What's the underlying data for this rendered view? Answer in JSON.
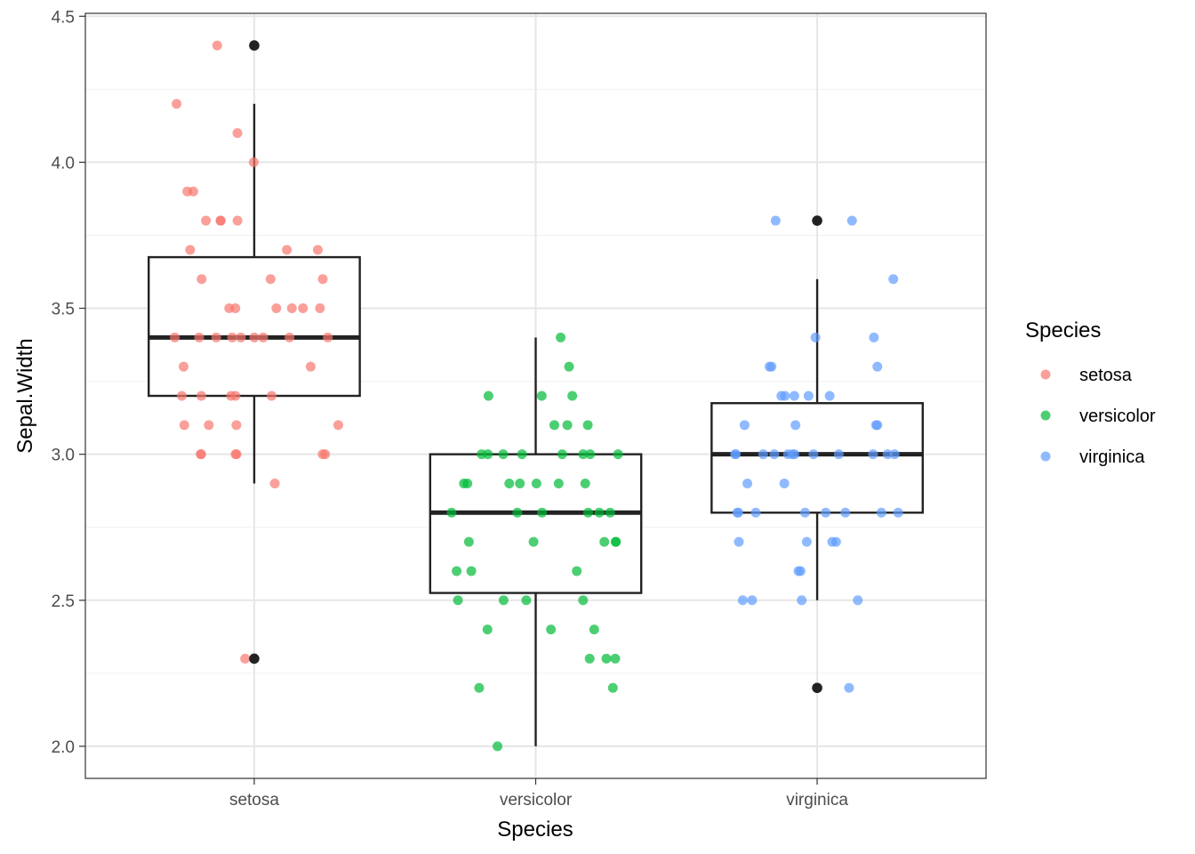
{
  "chart_data": {
    "type": "boxplot",
    "xlabel": "Species",
    "ylabel": "Sepal.Width",
    "ylim": [
      1.89,
      4.51
    ],
    "y_ticks": [
      "2.0",
      "2.5",
      "3.0",
      "3.5",
      "4.0",
      "4.5"
    ],
    "categories": [
      "setosa",
      "versicolor",
      "virginica"
    ],
    "legend": {
      "title": "Species",
      "position": "right",
      "entries": [
        "setosa",
        "versicolor",
        "virginica"
      ]
    },
    "colors": {
      "setosa": "#F8766D",
      "versicolor": "#00BA38",
      "virginica": "#619CFF",
      "box": "#222222",
      "grid": "#e6e6e6"
    },
    "grid": true,
    "boxes": [
      {
        "name": "setosa",
        "q1": 3.2,
        "median": 3.4,
        "q3": 3.675,
        "whisker_low": 2.9,
        "whisker_high": 4.2,
        "outliers": [
          4.4,
          2.3
        ]
      },
      {
        "name": "versicolor",
        "q1": 2.525,
        "median": 2.8,
        "q3": 3.0,
        "whisker_low": 2.0,
        "whisker_high": 3.4,
        "outliers": []
      },
      {
        "name": "virginica",
        "q1": 2.8,
        "median": 3.0,
        "q3": 3.175,
        "whisker_low": 2.5,
        "whisker_high": 3.6,
        "outliers": [
          3.8,
          2.2
        ]
      }
    ],
    "series": [
      {
        "name": "setosa",
        "values": [
          3.5,
          3.0,
          3.2,
          3.1,
          3.6,
          3.9,
          3.4,
          3.4,
          2.9,
          3.1,
          3.7,
          3.4,
          3.0,
          3.0,
          4.0,
          4.4,
          3.9,
          3.5,
          3.8,
          3.8,
          3.4,
          3.7,
          3.6,
          3.3,
          3.4,
          3.0,
          3.4,
          3.5,
          3.4,
          3.2,
          3.1,
          3.4,
          4.1,
          4.2,
          3.1,
          3.2,
          3.5,
          3.6,
          3.0,
          3.4,
          3.5,
          2.3,
          3.2,
          3.5,
          3.8,
          3.0,
          3.8,
          3.2,
          3.7,
          3.3
        ]
      },
      {
        "name": "versicolor",
        "values": [
          3.2,
          3.2,
          3.1,
          2.3,
          2.8,
          2.8,
          3.3,
          2.4,
          2.9,
          2.7,
          2.0,
          3.0,
          2.2,
          2.9,
          2.9,
          3.1,
          3.0,
          2.7,
          2.2,
          2.5,
          3.2,
          2.8,
          2.5,
          2.8,
          2.9,
          3.0,
          2.8,
          3.0,
          2.9,
          2.6,
          2.4,
          2.4,
          2.7,
          2.7,
          3.0,
          3.4,
          3.1,
          2.3,
          3.0,
          2.5,
          2.6,
          3.0,
          2.6,
          2.3,
          2.7,
          3.0,
          2.9,
          2.9,
          2.5,
          2.8
        ]
      },
      {
        "name": "virginica",
        "values": [
          3.3,
          2.7,
          3.0,
          2.9,
          3.0,
          3.0,
          2.5,
          2.9,
          2.5,
          3.6,
          3.2,
          2.7,
          3.0,
          2.5,
          2.8,
          3.2,
          3.0,
          3.8,
          2.6,
          2.2,
          3.2,
          2.8,
          2.8,
          2.7,
          3.3,
          3.2,
          2.8,
          3.0,
          2.8,
          3.0,
          2.8,
          3.8,
          2.8,
          2.8,
          2.6,
          3.0,
          3.4,
          3.1,
          3.0,
          3.1,
          3.1,
          3.1,
          2.7,
          3.2,
          3.3,
          3.0,
          2.5,
          3.0,
          3.4,
          3.0
        ]
      }
    ]
  }
}
